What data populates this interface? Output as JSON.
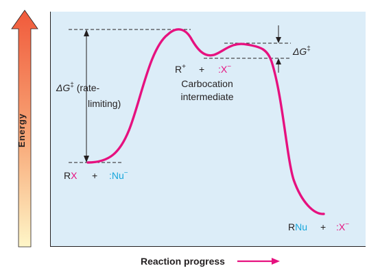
{
  "axis": {
    "y_label": "Energy",
    "x_label": "Reaction progress"
  },
  "labels": {
    "dg_left_delta": "ΔG",
    "dg_left_dagger": "‡",
    "dg_left_line1": " (rate-",
    "dg_left_line2": "limiting)",
    "dg_right_delta": "ΔG",
    "dg_right_dagger": "‡",
    "intermediate_r": "R",
    "intermediate_r_charge": "+",
    "intermediate_plus": "+",
    "intermediate_x_colon": ":X",
    "intermediate_x_charge": "−",
    "intermediate_name_1": "Carbocation",
    "intermediate_name_2": "intermediate",
    "reactant_r": "R",
    "reactant_x": "X",
    "reactant_plus": "+",
    "reactant_nu": ":Nu",
    "reactant_nu_charge": "−",
    "product_r": "R",
    "product_nu": "Nu",
    "product_plus": "+",
    "product_x": ":X",
    "product_x_charge": "−"
  },
  "colors": {
    "curve": "#e6117f",
    "panel": "#dcedf8",
    "leaving_group": "#e6117f",
    "nucleophile": "#16a6db",
    "arrow_top": "#f05a3b",
    "arrow_bottom": "#fef6c8"
  }
}
